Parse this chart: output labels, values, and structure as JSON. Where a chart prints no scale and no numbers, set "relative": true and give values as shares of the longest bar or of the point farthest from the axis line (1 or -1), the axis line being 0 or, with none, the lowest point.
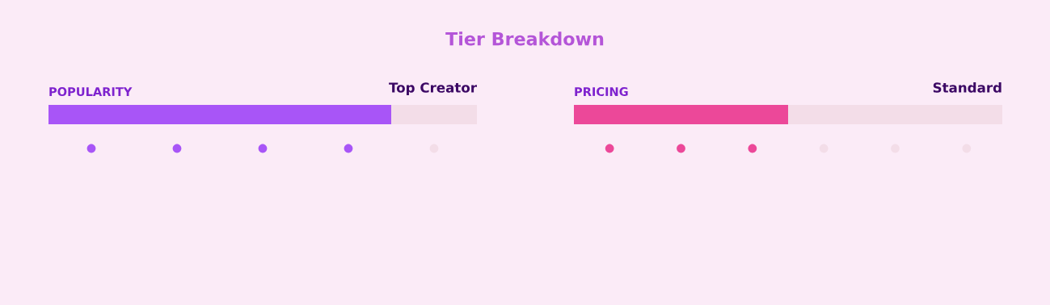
{
  "chart_data": [
    {
      "type": "other",
      "title": "Tier Breakdown"
    },
    {
      "type": "bar",
      "orientation": "horizontal",
      "stacked": true,
      "relative": true,
      "title": "POPULARITY",
      "annotations": [
        "Top Creator"
      ],
      "categories": [
        null
      ],
      "series": [
        {
          "color": "#a855f7",
          "values": [
            0.8
          ]
        },
        {
          "color": "#f3dde8",
          "values": [
            0.2
          ]
        }
      ]
    },
    {
      "type": "other",
      "colors": [
        "#a855f7",
        "#a855f7",
        "#a855f7",
        "#a855f7",
        "#f3dde8"
      ]
    },
    {
      "type": "bar",
      "orientation": "horizontal",
      "stacked": true,
      "relative": true,
      "title": "PRICING",
      "annotations": [
        "Standard"
      ],
      "categories": [
        null
      ],
      "series": [
        {
          "color": "#ec4899",
          "values": [
            0.5
          ]
        },
        {
          "color": "#f3dde8",
          "values": [
            0.5
          ]
        }
      ]
    },
    {
      "type": "other",
      "colors": [
        "#ec4899",
        "#ec4899",
        "#ec4899",
        "#f3dde8",
        "#f3dde8",
        "#f3dde8"
      ]
    }
  ]
}
